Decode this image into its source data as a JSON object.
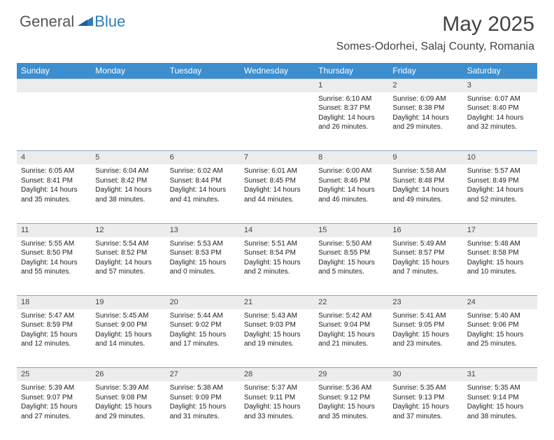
{
  "brand": {
    "general": "General",
    "blue": "Blue"
  },
  "header": {
    "month_title": "May 2025",
    "location": "Somes-Odorhei, Salaj County, Romania"
  },
  "colors": {
    "header_bg": "#3c8ecf",
    "header_fg": "#ffffff",
    "daynum_bg": "#ececec",
    "divider": "#3c8ecf",
    "text": "#222222",
    "logo_gray": "#555555",
    "logo_blue": "#2f7bbf"
  },
  "weekdays": [
    "Sunday",
    "Monday",
    "Tuesday",
    "Wednesday",
    "Thursday",
    "Friday",
    "Saturday"
  ],
  "weeks": [
    [
      null,
      null,
      null,
      null,
      {
        "n": "1",
        "sunrise": "Sunrise: 6:10 AM",
        "sunset": "Sunset: 8:37 PM",
        "day1": "Daylight: 14 hours",
        "day2": "and 26 minutes."
      },
      {
        "n": "2",
        "sunrise": "Sunrise: 6:09 AM",
        "sunset": "Sunset: 8:38 PM",
        "day1": "Daylight: 14 hours",
        "day2": "and 29 minutes."
      },
      {
        "n": "3",
        "sunrise": "Sunrise: 6:07 AM",
        "sunset": "Sunset: 8:40 PM",
        "day1": "Daylight: 14 hours",
        "day2": "and 32 minutes."
      }
    ],
    [
      {
        "n": "4",
        "sunrise": "Sunrise: 6:05 AM",
        "sunset": "Sunset: 8:41 PM",
        "day1": "Daylight: 14 hours",
        "day2": "and 35 minutes."
      },
      {
        "n": "5",
        "sunrise": "Sunrise: 6:04 AM",
        "sunset": "Sunset: 8:42 PM",
        "day1": "Daylight: 14 hours",
        "day2": "and 38 minutes."
      },
      {
        "n": "6",
        "sunrise": "Sunrise: 6:02 AM",
        "sunset": "Sunset: 8:44 PM",
        "day1": "Daylight: 14 hours",
        "day2": "and 41 minutes."
      },
      {
        "n": "7",
        "sunrise": "Sunrise: 6:01 AM",
        "sunset": "Sunset: 8:45 PM",
        "day1": "Daylight: 14 hours",
        "day2": "and 44 minutes."
      },
      {
        "n": "8",
        "sunrise": "Sunrise: 6:00 AM",
        "sunset": "Sunset: 8:46 PM",
        "day1": "Daylight: 14 hours",
        "day2": "and 46 minutes."
      },
      {
        "n": "9",
        "sunrise": "Sunrise: 5:58 AM",
        "sunset": "Sunset: 8:48 PM",
        "day1": "Daylight: 14 hours",
        "day2": "and 49 minutes."
      },
      {
        "n": "10",
        "sunrise": "Sunrise: 5:57 AM",
        "sunset": "Sunset: 8:49 PM",
        "day1": "Daylight: 14 hours",
        "day2": "and 52 minutes."
      }
    ],
    [
      {
        "n": "11",
        "sunrise": "Sunrise: 5:55 AM",
        "sunset": "Sunset: 8:50 PM",
        "day1": "Daylight: 14 hours",
        "day2": "and 55 minutes."
      },
      {
        "n": "12",
        "sunrise": "Sunrise: 5:54 AM",
        "sunset": "Sunset: 8:52 PM",
        "day1": "Daylight: 14 hours",
        "day2": "and 57 minutes."
      },
      {
        "n": "13",
        "sunrise": "Sunrise: 5:53 AM",
        "sunset": "Sunset: 8:53 PM",
        "day1": "Daylight: 15 hours",
        "day2": "and 0 minutes."
      },
      {
        "n": "14",
        "sunrise": "Sunrise: 5:51 AM",
        "sunset": "Sunset: 8:54 PM",
        "day1": "Daylight: 15 hours",
        "day2": "and 2 minutes."
      },
      {
        "n": "15",
        "sunrise": "Sunrise: 5:50 AM",
        "sunset": "Sunset: 8:55 PM",
        "day1": "Daylight: 15 hours",
        "day2": "and 5 minutes."
      },
      {
        "n": "16",
        "sunrise": "Sunrise: 5:49 AM",
        "sunset": "Sunset: 8:57 PM",
        "day1": "Daylight: 15 hours",
        "day2": "and 7 minutes."
      },
      {
        "n": "17",
        "sunrise": "Sunrise: 5:48 AM",
        "sunset": "Sunset: 8:58 PM",
        "day1": "Daylight: 15 hours",
        "day2": "and 10 minutes."
      }
    ],
    [
      {
        "n": "18",
        "sunrise": "Sunrise: 5:47 AM",
        "sunset": "Sunset: 8:59 PM",
        "day1": "Daylight: 15 hours",
        "day2": "and 12 minutes."
      },
      {
        "n": "19",
        "sunrise": "Sunrise: 5:45 AM",
        "sunset": "Sunset: 9:00 PM",
        "day1": "Daylight: 15 hours",
        "day2": "and 14 minutes."
      },
      {
        "n": "20",
        "sunrise": "Sunrise: 5:44 AM",
        "sunset": "Sunset: 9:02 PM",
        "day1": "Daylight: 15 hours",
        "day2": "and 17 minutes."
      },
      {
        "n": "21",
        "sunrise": "Sunrise: 5:43 AM",
        "sunset": "Sunset: 9:03 PM",
        "day1": "Daylight: 15 hours",
        "day2": "and 19 minutes."
      },
      {
        "n": "22",
        "sunrise": "Sunrise: 5:42 AM",
        "sunset": "Sunset: 9:04 PM",
        "day1": "Daylight: 15 hours",
        "day2": "and 21 minutes."
      },
      {
        "n": "23",
        "sunrise": "Sunrise: 5:41 AM",
        "sunset": "Sunset: 9:05 PM",
        "day1": "Daylight: 15 hours",
        "day2": "and 23 minutes."
      },
      {
        "n": "24",
        "sunrise": "Sunrise: 5:40 AM",
        "sunset": "Sunset: 9:06 PM",
        "day1": "Daylight: 15 hours",
        "day2": "and 25 minutes."
      }
    ],
    [
      {
        "n": "25",
        "sunrise": "Sunrise: 5:39 AM",
        "sunset": "Sunset: 9:07 PM",
        "day1": "Daylight: 15 hours",
        "day2": "and 27 minutes."
      },
      {
        "n": "26",
        "sunrise": "Sunrise: 5:39 AM",
        "sunset": "Sunset: 9:08 PM",
        "day1": "Daylight: 15 hours",
        "day2": "and 29 minutes."
      },
      {
        "n": "27",
        "sunrise": "Sunrise: 5:38 AM",
        "sunset": "Sunset: 9:09 PM",
        "day1": "Daylight: 15 hours",
        "day2": "and 31 minutes."
      },
      {
        "n": "28",
        "sunrise": "Sunrise: 5:37 AM",
        "sunset": "Sunset: 9:11 PM",
        "day1": "Daylight: 15 hours",
        "day2": "and 33 minutes."
      },
      {
        "n": "29",
        "sunrise": "Sunrise: 5:36 AM",
        "sunset": "Sunset: 9:12 PM",
        "day1": "Daylight: 15 hours",
        "day2": "and 35 minutes."
      },
      {
        "n": "30",
        "sunrise": "Sunrise: 5:35 AM",
        "sunset": "Sunset: 9:13 PM",
        "day1": "Daylight: 15 hours",
        "day2": "and 37 minutes."
      },
      {
        "n": "31",
        "sunrise": "Sunrise: 5:35 AM",
        "sunset": "Sunset: 9:14 PM",
        "day1": "Daylight: 15 hours",
        "day2": "and 38 minutes."
      }
    ]
  ]
}
